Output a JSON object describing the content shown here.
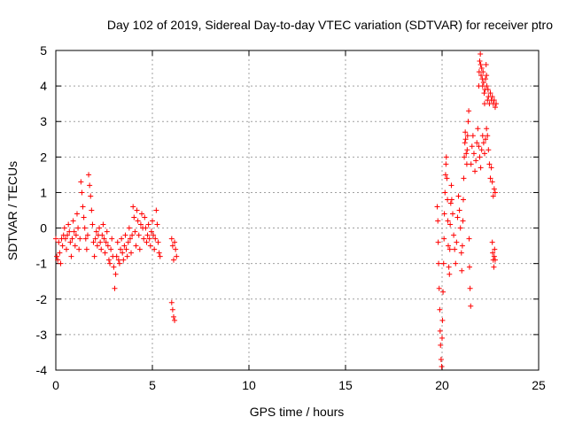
{
  "chart_data": {
    "type": "scatter",
    "title": "Day 102 of 2019, Sidereal Day-to-day VTEC variation (SDTVAR) for receiver ptro",
    "xlabel": "GPS time / hours",
    "ylabel": "SDTVAR / TECUs",
    "xlim": [
      0,
      25
    ],
    "ylim": [
      -4,
      5
    ],
    "xticks": [
      0,
      5,
      10,
      15,
      20,
      25
    ],
    "yticks": [
      -4,
      -3,
      -2,
      -1,
      0,
      1,
      2,
      3,
      4,
      5
    ],
    "xtick_labels": [
      "0",
      "5",
      "10",
      "15",
      "20",
      "25"
    ],
    "ytick_labels": [
      "-4",
      "-3",
      "-2",
      "-1",
      "0",
      "1",
      "2",
      "3",
      "4",
      "5"
    ],
    "grid": true,
    "marker": "+",
    "series_color": "#ff0000",
    "series": [
      {
        "name": "SDTVAR",
        "points": [
          [
            0.0,
            -0.3
          ],
          [
            0.05,
            -0.8
          ],
          [
            0.1,
            -0.9
          ],
          [
            0.15,
            -0.4
          ],
          [
            0.2,
            -0.7
          ],
          [
            0.25,
            -1.0
          ],
          [
            0.3,
            -0.3
          ],
          [
            0.35,
            -0.5
          ],
          [
            0.4,
            -0.2
          ],
          [
            0.45,
            0.0
          ],
          [
            0.5,
            -0.3
          ],
          [
            0.55,
            -0.6
          ],
          [
            0.6,
            -0.2
          ],
          [
            0.65,
            0.1
          ],
          [
            0.7,
            -0.1
          ],
          [
            0.75,
            -0.4
          ],
          [
            0.8,
            -0.8
          ],
          [
            0.85,
            -0.3
          ],
          [
            0.9,
            0.2
          ],
          [
            0.95,
            -0.1
          ],
          [
            1.0,
            -0.5
          ],
          [
            1.05,
            -0.2
          ],
          [
            1.1,
            0.4
          ],
          [
            1.15,
            0.0
          ],
          [
            1.2,
            -0.6
          ],
          [
            1.25,
            -0.3
          ],
          [
            1.3,
            1.3
          ],
          [
            1.35,
            1.0
          ],
          [
            1.4,
            0.6
          ],
          [
            1.45,
            0.3
          ],
          [
            1.5,
            0.0
          ],
          [
            1.55,
            -0.3
          ],
          [
            1.6,
            -0.6
          ],
          [
            1.65,
            -0.2
          ],
          [
            1.7,
            1.5
          ],
          [
            1.75,
            1.2
          ],
          [
            1.8,
            0.9
          ],
          [
            1.85,
            0.5
          ],
          [
            1.9,
            0.1
          ],
          [
            1.95,
            -0.4
          ],
          [
            2.0,
            -0.8
          ],
          [
            2.05,
            -0.3
          ],
          [
            2.1,
            -0.1
          ],
          [
            2.15,
            -0.5
          ],
          [
            2.2,
            -0.2
          ],
          [
            2.25,
            0.0
          ],
          [
            2.3,
            -0.4
          ],
          [
            2.35,
            -0.6
          ],
          [
            2.4,
            -0.2
          ],
          [
            2.45,
            0.1
          ],
          [
            2.5,
            -0.3
          ],
          [
            2.55,
            -0.7
          ],
          [
            2.6,
            -0.4
          ],
          [
            2.65,
            -0.1
          ],
          [
            2.7,
            -0.5
          ],
          [
            2.75,
            -0.9
          ],
          [
            2.8,
            -1.0
          ],
          [
            2.85,
            -0.6
          ],
          [
            2.9,
            -0.3
          ],
          [
            2.95,
            -0.8
          ],
          [
            3.0,
            -1.1
          ],
          [
            3.05,
            -1.7
          ],
          [
            3.1,
            -1.3
          ],
          [
            3.15,
            -0.8
          ],
          [
            3.2,
            -0.4
          ],
          [
            3.25,
            -0.9
          ],
          [
            3.3,
            -1.0
          ],
          [
            3.35,
            -0.6
          ],
          [
            3.4,
            -0.3
          ],
          [
            3.45,
            -0.7
          ],
          [
            3.5,
            -0.9
          ],
          [
            3.55,
            -0.5
          ],
          [
            3.6,
            -0.2
          ],
          [
            3.65,
            -0.6
          ],
          [
            3.7,
            -0.8
          ],
          [
            3.75,
            -0.4
          ],
          [
            3.8,
            0.0
          ],
          [
            3.85,
            -0.3
          ],
          [
            3.9,
            -0.7
          ],
          [
            3.95,
            -0.2
          ],
          [
            4.0,
            0.6
          ],
          [
            4.05,
            0.3
          ],
          [
            4.1,
            -0.1
          ],
          [
            4.15,
            -0.5
          ],
          [
            4.2,
            0.5
          ],
          [
            4.25,
            0.2
          ],
          [
            4.3,
            -0.2
          ],
          [
            4.35,
            -0.6
          ],
          [
            4.4,
            0.1
          ],
          [
            4.45,
            0.4
          ],
          [
            4.5,
            0.0
          ],
          [
            4.55,
            -0.3
          ],
          [
            4.6,
            0.3
          ],
          [
            4.65,
            0.0
          ],
          [
            4.7,
            -0.4
          ],
          [
            4.75,
            -0.2
          ],
          [
            4.8,
            0.1
          ],
          [
            4.85,
            -0.3
          ],
          [
            4.9,
            -0.5
          ],
          [
            4.95,
            -0.1
          ],
          [
            5.0,
            0.2
          ],
          [
            5.05,
            -0.2
          ],
          [
            5.1,
            -0.6
          ],
          [
            5.15,
            -0.3
          ],
          [
            5.2,
            0.5
          ],
          [
            5.25,
            0.1
          ],
          [
            5.3,
            -0.4
          ],
          [
            5.35,
            -0.7
          ],
          [
            5.4,
            -0.8
          ],
          [
            6.0,
            -0.3
          ],
          [
            6.05,
            -0.5
          ],
          [
            6.1,
            -0.9
          ],
          [
            6.15,
            -0.4
          ],
          [
            6.2,
            -0.6
          ],
          [
            6.25,
            -0.8
          ],
          [
            6.0,
            -2.1
          ],
          [
            6.05,
            -2.3
          ],
          [
            6.1,
            -2.5
          ],
          [
            6.15,
            -2.6
          ],
          [
            19.75,
            0.6
          ],
          [
            19.78,
            0.2
          ],
          [
            19.8,
            -0.4
          ],
          [
            19.82,
            -1.0
          ],
          [
            19.85,
            -1.7
          ],
          [
            19.88,
            -2.3
          ],
          [
            19.9,
            -2.9
          ],
          [
            19.92,
            -3.3
          ],
          [
            19.95,
            -3.7
          ],
          [
            19.98,
            -3.9
          ],
          [
            20.0,
            -3.1
          ],
          [
            20.02,
            -2.6
          ],
          [
            20.05,
            -1.8
          ],
          [
            20.08,
            -1.0
          ],
          [
            20.1,
            -0.3
          ],
          [
            20.12,
            0.4
          ],
          [
            20.15,
            1.0
          ],
          [
            20.18,
            1.5
          ],
          [
            20.2,
            1.8
          ],
          [
            20.22,
            2.0
          ],
          [
            20.25,
            1.4
          ],
          [
            20.28,
            0.8
          ],
          [
            20.3,
            0.2
          ],
          [
            20.32,
            -0.5
          ],
          [
            20.35,
            -1.1
          ],
          [
            20.38,
            -1.3
          ],
          [
            20.4,
            -0.6
          ],
          [
            20.42,
            0.1
          ],
          [
            20.45,
            0.7
          ],
          [
            20.48,
            1.2
          ],
          [
            20.5,
            0.8
          ],
          [
            20.55,
            0.4
          ],
          [
            20.6,
            -0.2
          ],
          [
            20.65,
            -0.6
          ],
          [
            20.7,
            -1.0
          ],
          [
            20.75,
            -0.4
          ],
          [
            20.8,
            0.3
          ],
          [
            20.85,
            0.9
          ],
          [
            20.9,
            0.5
          ],
          [
            20.95,
            0.0
          ],
          [
            21.0,
            -0.7
          ],
          [
            21.02,
            -1.2
          ],
          [
            21.05,
            -0.5
          ],
          [
            21.08,
            0.2
          ],
          [
            21.1,
            0.8
          ],
          [
            21.12,
            1.4
          ],
          [
            21.15,
            2.0
          ],
          [
            21.18,
            2.4
          ],
          [
            21.2,
            2.7
          ],
          [
            21.22,
            2.5
          ],
          [
            21.25,
            2.1
          ],
          [
            21.28,
            1.8
          ],
          [
            21.3,
            2.2
          ],
          [
            21.32,
            2.6
          ],
          [
            21.35,
            3.0
          ],
          [
            21.38,
            3.3
          ],
          [
            21.4,
            -0.3
          ],
          [
            21.42,
            -1.1
          ],
          [
            21.45,
            -1.7
          ],
          [
            21.48,
            -2.2
          ],
          [
            21.5,
            1.8
          ],
          [
            21.55,
            2.3
          ],
          [
            21.6,
            2.6
          ],
          [
            21.65,
            2.1
          ],
          [
            21.7,
            1.6
          ],
          [
            21.75,
            1.9
          ],
          [
            21.8,
            2.4
          ],
          [
            21.85,
            2.8
          ],
          [
            21.9,
            4.0
          ],
          [
            21.92,
            4.4
          ],
          [
            21.95,
            4.7
          ],
          [
            21.98,
            4.9
          ],
          [
            22.0,
            4.6
          ],
          [
            22.02,
            4.3
          ],
          [
            22.05,
            4.5
          ],
          [
            22.08,
            4.2
          ],
          [
            22.1,
            4.0
          ],
          [
            22.12,
            4.4
          ],
          [
            22.15,
            4.1
          ],
          [
            22.18,
            3.8
          ],
          [
            22.2,
            3.5
          ],
          [
            22.22,
            3.9
          ],
          [
            22.25,
            4.2
          ],
          [
            22.28,
            4.6
          ],
          [
            22.3,
            4.3
          ],
          [
            22.32,
            4.0
          ],
          [
            22.35,
            3.6
          ],
          [
            22.38,
            3.9
          ],
          [
            22.4,
            3.7
          ],
          [
            22.45,
            3.5
          ],
          [
            22.5,
            3.8
          ],
          [
            22.55,
            3.6
          ],
          [
            22.6,
            3.7
          ],
          [
            22.65,
            3.5
          ],
          [
            22.7,
            3.6
          ],
          [
            22.75,
            3.4
          ],
          [
            22.8,
            3.5
          ],
          [
            21.9,
            2.3
          ],
          [
            21.95,
            2.0
          ],
          [
            22.0,
            1.7
          ],
          [
            22.05,
            2.2
          ],
          [
            22.1,
            2.6
          ],
          [
            22.15,
            2.4
          ],
          [
            22.2,
            2.1
          ],
          [
            22.25,
            2.5
          ],
          [
            22.3,
            2.8
          ],
          [
            22.35,
            2.6
          ],
          [
            22.4,
            2.2
          ],
          [
            22.45,
            1.8
          ],
          [
            22.5,
            1.4
          ],
          [
            22.55,
            1.7
          ],
          [
            22.6,
            1.3
          ],
          [
            22.65,
            0.9
          ],
          [
            22.7,
            1.1
          ],
          [
            22.75,
            1.0
          ],
          [
            22.6,
            -0.4
          ],
          [
            22.62,
            -0.7
          ],
          [
            22.65,
            -0.9
          ],
          [
            22.68,
            -1.1
          ],
          [
            22.7,
            -0.8
          ],
          [
            22.72,
            -0.6
          ],
          [
            22.75,
            -0.9
          ]
        ]
      }
    ]
  }
}
